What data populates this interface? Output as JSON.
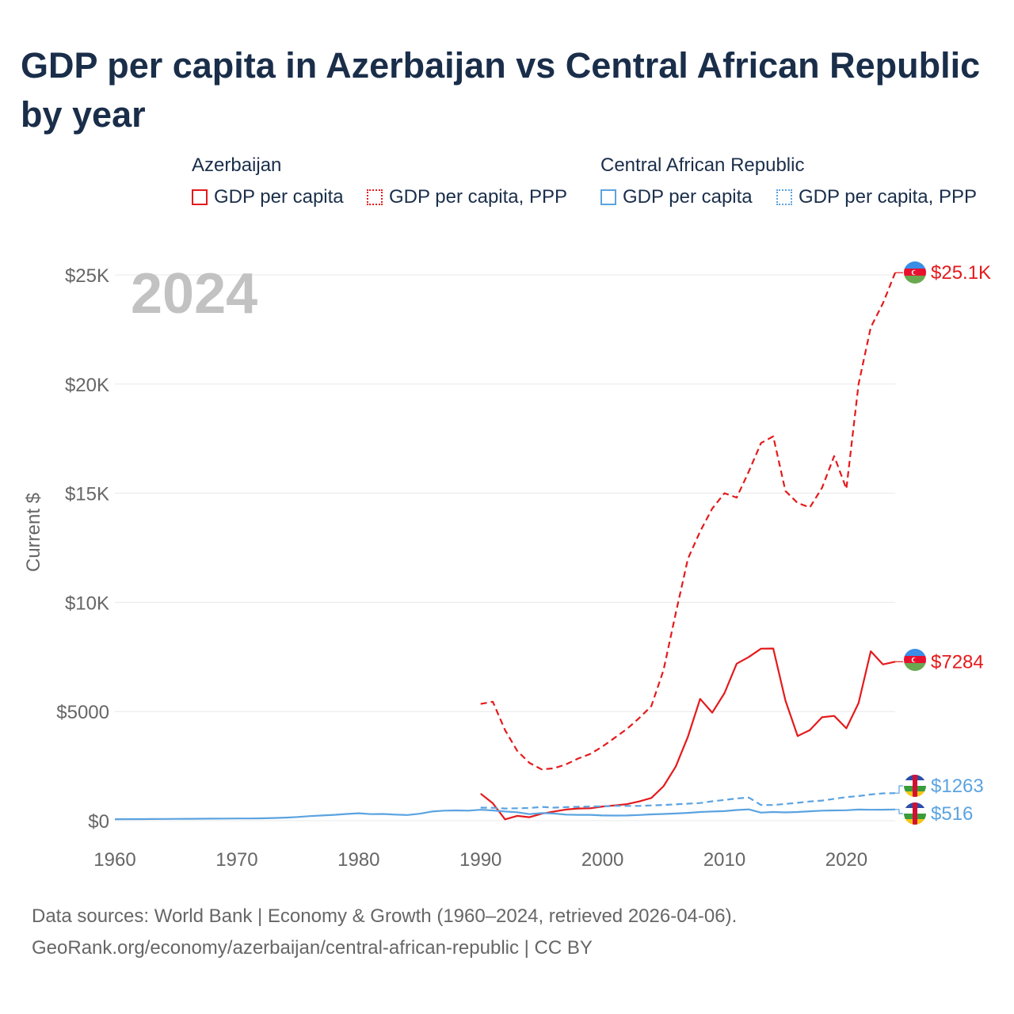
{
  "chart_data": {
    "type": "line",
    "title": "GDP per capita in Azerbaijan vs Central African Republic by year",
    "ylabel": "Current $",
    "xlim": [
      1960,
      2024
    ],
    "ylim": [
      0,
      25000
    ],
    "year_label": "2024",
    "x_ticks": [
      1960,
      1970,
      1980,
      1990,
      2000,
      2010,
      2020
    ],
    "x_tick_labels": [
      "1960",
      "1970",
      "1980",
      "1990",
      "2000",
      "2010",
      "2020"
    ],
    "y_ticks": [
      0,
      5000,
      10000,
      15000,
      20000,
      25000
    ],
    "y_tick_labels": [
      "$0",
      "$5000",
      "$10K",
      "$15K",
      "$20K",
      "$25K"
    ],
    "legend": {
      "groups": [
        {
          "name": "Azerbaijan",
          "color": "#e41a1c",
          "items": [
            "GDP per capita",
            "GDP per capita, PPP"
          ]
        },
        {
          "name": "Central African Republic",
          "color": "#5ba3e0",
          "items": [
            "GDP per capita",
            "GDP per capita, PPP"
          ]
        }
      ]
    },
    "series": [
      {
        "name": "Azerbaijan GDP per capita",
        "country": "Azerbaijan",
        "style": "solid",
        "color": "#e41a1c",
        "end_label": "$7284",
        "flag": "azerbaijan-flag",
        "x": [
          1990,
          1991,
          1992,
          1993,
          1994,
          1995,
          1996,
          1997,
          1998,
          1999,
          2000,
          2001,
          2002,
          2003,
          2004,
          2005,
          2006,
          2007,
          2008,
          2009,
          2010,
          2011,
          2012,
          2013,
          2014,
          2015,
          2016,
          2017,
          2018,
          2019,
          2020,
          2021,
          2022,
          2023,
          2024
        ],
        "values": [
          1240,
          800,
          60,
          220,
          160,
          320,
          420,
          510,
          560,
          570,
          650,
          700,
          760,
          880,
          1040,
          1580,
          2480,
          3850,
          5580,
          4950,
          5840,
          7190,
          7500,
          7880,
          7890,
          5500,
          3880,
          4150,
          4740,
          4800,
          4230,
          5390,
          7760,
          7160,
          7284
        ]
      },
      {
        "name": "Azerbaijan GDP per capita, PPP",
        "country": "Azerbaijan",
        "style": "dashed",
        "color": "#e41a1c",
        "end_label": "$25.1K",
        "flag": "azerbaijan-flag",
        "x": [
          1990,
          1991,
          1992,
          1993,
          1994,
          1995,
          1996,
          1997,
          1998,
          1999,
          2000,
          2001,
          2002,
          2003,
          2004,
          2005,
          2006,
          2007,
          2008,
          2009,
          2010,
          2011,
          2012,
          2013,
          2014,
          2015,
          2016,
          2017,
          2018,
          2019,
          2020,
          2021,
          2022,
          2023,
          2024
        ],
        "values": [
          5350,
          5450,
          4150,
          3200,
          2650,
          2350,
          2400,
          2580,
          2850,
          3060,
          3400,
          3800,
          4200,
          4700,
          5250,
          6900,
          9500,
          12000,
          13250,
          14300,
          15000,
          14800,
          16000,
          17300,
          17600,
          15100,
          14550,
          14350,
          15250,
          16700,
          15200,
          20000,
          22600,
          23700,
          25100
        ]
      },
      {
        "name": "Central African Republic GDP per capita",
        "country": "Central African Republic",
        "style": "solid",
        "color": "#5ba3e0",
        "end_label": "$516",
        "flag": "central-african-republic-flag",
        "x": [
          1960,
          1961,
          1962,
          1963,
          1964,
          1965,
          1966,
          1967,
          1968,
          1969,
          1970,
          1971,
          1972,
          1973,
          1974,
          1975,
          1976,
          1977,
          1978,
          1979,
          1980,
          1981,
          1982,
          1983,
          1984,
          1985,
          1986,
          1987,
          1988,
          1989,
          1990,
          1991,
          1992,
          1993,
          1994,
          1995,
          1996,
          1997,
          1998,
          1999,
          2000,
          2001,
          2002,
          2003,
          2004,
          2005,
          2006,
          2007,
          2008,
          2009,
          2010,
          2011,
          2012,
          2013,
          2014,
          2015,
          2016,
          2017,
          2018,
          2019,
          2020,
          2021,
          2022,
          2023,
          2024
        ],
        "values": [
          70,
          72,
          74,
          76,
          80,
          82,
          86,
          90,
          95,
          98,
          100,
          102,
          110,
          125,
          140,
          170,
          210,
          240,
          270,
          310,
          340,
          300,
          310,
          280,
          260,
          320,
          420,
          460,
          470,
          460,
          500,
          470,
          420,
          390,
          300,
          350,
          330,
          280,
          270,
          270,
          240,
          235,
          240,
          260,
          290,
          310,
          330,
          360,
          400,
          420,
          440,
          490,
          520,
          370,
          400,
          380,
          400,
          430,
          460,
          470,
          480,
          510,
          500,
          505,
          516
        ]
      },
      {
        "name": "Central African Republic GDP per capita, PPP",
        "country": "Central African Republic",
        "style": "dashed",
        "color": "#5ba3e0",
        "end_label": "$1263",
        "flag": "central-african-republic-flag",
        "x": [
          1990,
          1991,
          1992,
          1993,
          1994,
          1995,
          1996,
          1997,
          1998,
          1999,
          2000,
          2001,
          2002,
          2003,
          2004,
          2005,
          2006,
          2007,
          2008,
          2009,
          2010,
          2011,
          2012,
          2013,
          2014,
          2015,
          2016,
          2017,
          2018,
          2019,
          2020,
          2021,
          2022,
          2023,
          2024
        ],
        "values": [
          600,
          590,
          560,
          570,
          580,
          630,
          600,
          620,
          640,
          650,
          660,
          680,
          680,
          680,
          700,
          720,
          750,
          780,
          810,
          890,
          950,
          1020,
          1060,
          720,
          720,
          770,
          820,
          880,
          920,
          1000,
          1080,
          1130,
          1200,
          1250,
          1263
        ]
      }
    ]
  },
  "footer": {
    "line1": "Data sources: World Bank | Economy & Growth (1960–2024, retrieved 2026-04-06).",
    "line2": "GeoRank.org/economy/azerbaijan/central-african-republic | CC BY"
  }
}
